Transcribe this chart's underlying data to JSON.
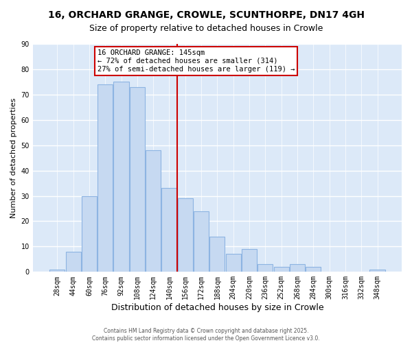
{
  "title": "16, ORCHARD GRANGE, CROWLE, SCUNTHORPE, DN17 4GH",
  "subtitle": "Size of property relative to detached houses in Crowle",
  "xlabel": "Distribution of detached houses by size in Crowle",
  "ylabel": "Number of detached properties",
  "bar_labels": [
    "28sqm",
    "44sqm",
    "60sqm",
    "76sqm",
    "92sqm",
    "108sqm",
    "124sqm",
    "140sqm",
    "156sqm",
    "172sqm",
    "188sqm",
    "204sqm",
    "220sqm",
    "236sqm",
    "252sqm",
    "268sqm",
    "284sqm",
    "300sqm",
    "316sqm",
    "332sqm",
    "348sqm"
  ],
  "bar_heights": [
    1,
    8,
    30,
    74,
    75,
    73,
    48,
    33,
    29,
    24,
    14,
    7,
    9,
    3,
    2,
    3,
    2,
    0,
    0,
    0,
    1
  ],
  "bar_color": "#c6d9f1",
  "bar_edge_color": "#8db4e2",
  "vline_color": "#cc0000",
  "ylim": [
    0,
    90
  ],
  "yticks": [
    0,
    10,
    20,
    30,
    40,
    50,
    60,
    70,
    80,
    90
  ],
  "annotation_title": "16 ORCHARD GRANGE: 145sqm",
  "annotation_line1": "← 72% of detached houses are smaller (314)",
  "annotation_line2": "27% of semi-detached houses are larger (119) →",
  "footer1": "Contains HM Land Registry data © Crown copyright and database right 2025.",
  "footer2": "Contains public sector information licensed under the Open Government Licence v3.0.",
  "figure_bg": "#ffffff",
  "axes_bg": "#dce9f8",
  "grid_color": "#ffffff",
  "title_fontsize": 10,
  "subtitle_fontsize": 9,
  "xlabel_fontsize": 9,
  "ylabel_fontsize": 8,
  "tick_fontsize": 7,
  "annotation_fontsize": 7.5,
  "footer_fontsize": 5.5
}
